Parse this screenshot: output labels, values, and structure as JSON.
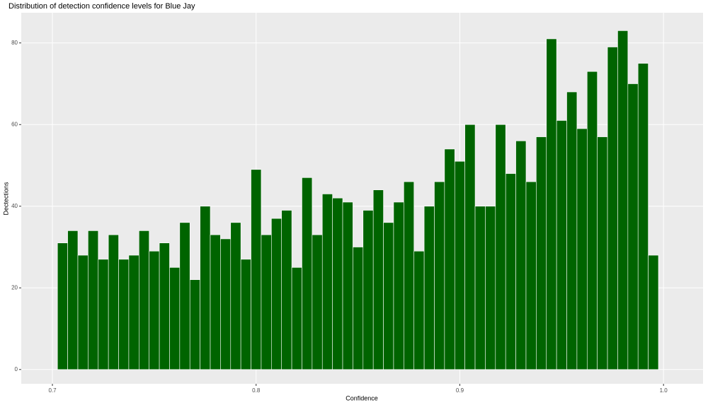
{
  "chart_data": {
    "type": "histogram",
    "title": "Distribution of detection confidence levels for Blue Jay",
    "x_label": "Confidence",
    "y_label": "Dectections",
    "color": "#006400",
    "bins": [
      0.7025,
      0.7075,
      0.7125,
      0.7175,
      0.7225,
      0.7275,
      0.7325,
      0.7375,
      0.7425,
      0.7475,
      0.7525,
      0.7575,
      0.7625,
      0.7675,
      0.7725,
      0.7775,
      0.7825,
      0.7875,
      0.7925,
      0.7975,
      0.8025,
      0.8075,
      0.8125,
      0.8175,
      0.8225,
      0.8275,
      0.8325,
      0.8375,
      0.8425,
      0.8475,
      0.8525,
      0.8575,
      0.8625,
      0.8675,
      0.8725,
      0.8775,
      0.8825,
      0.8875,
      0.8925,
      0.8975,
      0.9025,
      0.9075,
      0.9125,
      0.9175,
      0.9225,
      0.9275,
      0.9325,
      0.9375,
      0.9425,
      0.9475,
      0.9525,
      0.9575,
      0.9625,
      0.9675,
      0.9725,
      0.9775,
      0.9825,
      0.9875,
      0.9925,
      0.9975
    ],
    "values": [
      31,
      34,
      28,
      34,
      27,
      33,
      27,
      28,
      34,
      29,
      31,
      25,
      36,
      22,
      40,
      33,
      32,
      36,
      27,
      49,
      33,
      37,
      39,
      25,
      47,
      33,
      43,
      42,
      41,
      30,
      39,
      44,
      36,
      41,
      46,
      29,
      40,
      46,
      54,
      51,
      60,
      40,
      40,
      60,
      48,
      56,
      46,
      57,
      81,
      61,
      68,
      59,
      73,
      57,
      79,
      83,
      70,
      75,
      28
    ],
    "xlim": [
      0.6847,
      1.0194
    ],
    "ylim": [
      -3.5,
      87.4
    ],
    "xticks": [
      0.7,
      0.8,
      0.9,
      {
        "value": 1,
        "label": "1.0"
      }
    ],
    "yticks": [
      0,
      20,
      40,
      60,
      80
    ],
    "grid": true
  }
}
